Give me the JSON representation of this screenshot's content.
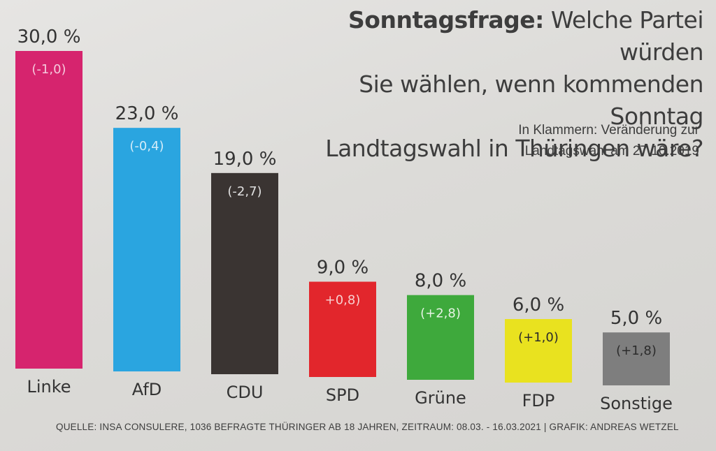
{
  "title": {
    "bold": "Sonntagsfrage:",
    "line1_rest": " Welche Partei würden",
    "line2": "Sie wählen, wenn kommenden Sonntag",
    "line3": "Landtagswahl in Thüringen wäre?"
  },
  "subtitle": {
    "line1": "In Klammern: Veränderung zur",
    "line2": "Landtagswahl am 27.10.2019"
  },
  "source": "QUELLE: INSA CONSULERE, 1036 BEFRAGTE THÜRINGER AB 18 JAHREN, ZEITRAUM: 08.03. - 16.03.2021 | GRAFIK: ANDREAS WETZEL",
  "chart_data": {
    "type": "bar",
    "categories": [
      "Linke",
      "AfD",
      "CDU",
      "SPD",
      "Grüne",
      "FDP",
      "Sonstige"
    ],
    "values": [
      30.0,
      23.0,
      19.0,
      9.0,
      8.0,
      6.0,
      5.0
    ],
    "value_labels": [
      "30,0 %",
      "23,0 %",
      "19,0 %",
      "9,0 %",
      "8,0 %",
      "6,0 %",
      "5,0 %"
    ],
    "change_labels": [
      "(-1,0)",
      "(-0,4)",
      "(-2,7)",
      "+0,8)",
      "(+2,8)",
      "(+1,0)",
      "(+1,8)"
    ],
    "colors": [
      "#d6246e",
      "#2aa5e0",
      "#3a3432",
      "#e2262c",
      "#3ea93c",
      "#e9e21f",
      "#7e7e7e"
    ],
    "change_label_colors": [
      "#f5c9dc",
      "#d4ecf8",
      "#e0e0e0",
      "#f8d0d0",
      "#e6f4e4",
      "#2b2b2b",
      "#2b2b2b"
    ],
    "ylim": [
      0,
      30
    ],
    "grid": false,
    "legend": "none"
  }
}
